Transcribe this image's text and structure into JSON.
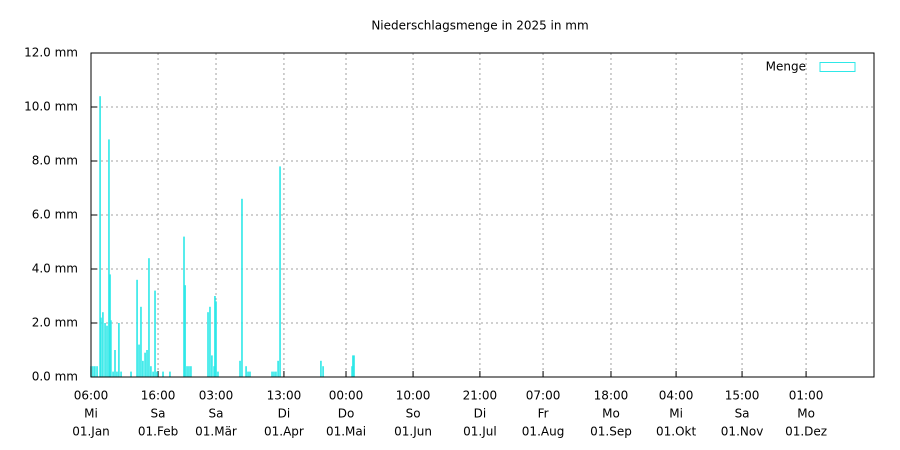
{
  "chart_data": {
    "type": "bar",
    "title": "Niederschlagsmenge in 2025 in mm",
    "series": [
      {
        "name": "Menge",
        "color": "#2ee8e8",
        "x": [
          0,
          0.9,
          1.8,
          2.8,
          4.2,
          4.6,
          5.5,
          6.5,
          7.4,
          8.3,
          8.8,
          9.2,
          10.2,
          11.1,
          12,
          12.9,
          13.9,
          18.5,
          21.3,
          22.2,
          23.1,
          24,
          25,
          25.9,
          26.8,
          27.7,
          28.7,
          29.6,
          30.5,
          33.3,
          36.5,
          43,
          43.5,
          44.4,
          45.3,
          46.2,
          54.1,
          55,
          55.9,
          56.9,
          57.3,
          57.8,
          58.7,
          68.9,
          69.8,
          71.7,
          72.6,
          73.5,
          83.7,
          84.6,
          85.5,
          86.5,
          87.4,
          106.3,
          107.3,
          120.7,
          121.1,
          121.6
        ],
        "values": [
          0.4,
          0.4,
          0.4,
          0.4,
          10.4,
          2.2,
          2.4,
          2.0,
          1.9,
          8.8,
          3.8,
          2.1,
          0.2,
          1.0,
          0.2,
          2.0,
          0.2,
          0.2,
          3.6,
          1.2,
          2.6,
          0.6,
          0.9,
          1.0,
          4.4,
          0.4,
          0.2,
          3.2,
          0.2,
          0.2,
          0.2,
          5.2,
          3.4,
          0.4,
          0.4,
          0.4,
          2.4,
          2.6,
          0.8,
          0.4,
          3.0,
          2.8,
          0.2,
          0.6,
          6.6,
          0.4,
          0.2,
          0.2,
          0.2,
          0.2,
          0.2,
          0.6,
          7.8,
          0.6,
          0.4,
          0.4,
          0.8,
          0.8
        ]
      }
    ],
    "xlim": [
      0,
      362
    ],
    "xticks": [
      {
        "value": 0,
        "time": "06:00",
        "day": "Mi",
        "date": "01.Jan"
      },
      {
        "value": 31,
        "time": "16:00",
        "day": "Sa",
        "date": "01.Feb"
      },
      {
        "value": 57.8,
        "time": "03:00",
        "day": "Sa",
        "date": "01.Mär"
      },
      {
        "value": 89.2,
        "time": "13:00",
        "day": "Di",
        "date": "01.Apr"
      },
      {
        "value": 117.9,
        "time": "00:00",
        "day": "Do",
        "date": "01.Mai"
      },
      {
        "value": 148.9,
        "time": "10:00",
        "day": "So",
        "date": "01.Jun"
      },
      {
        "value": 179.8,
        "time": "21:00",
        "day": "Di",
        "date": "01.Jul"
      },
      {
        "value": 209,
        "time": "07:00",
        "day": "Fr",
        "date": "01.Aug"
      },
      {
        "value": 240.4,
        "time": "18:00",
        "day": "Mo",
        "date": "01.Sep"
      },
      {
        "value": 270.5,
        "time": "04:00",
        "day": "Mi",
        "date": "01.Okt"
      },
      {
        "value": 301,
        "time": "15:00",
        "day": "Sa",
        "date": "01.Nov"
      },
      {
        "value": 330.6,
        "time": "01:00",
        "day": "Mo",
        "date": "01.Dez"
      }
    ],
    "ylim": [
      0,
      12
    ],
    "yticks": [
      {
        "value": 0,
        "label": "0.0 mm"
      },
      {
        "value": 2,
        "label": "2.0 mm"
      },
      {
        "value": 4,
        "label": "4.0 mm"
      },
      {
        "value": 6,
        "label": "6.0 mm"
      },
      {
        "value": 8,
        "label": "8.0 mm"
      },
      {
        "value": 10,
        "label": "10.0 mm"
      },
      {
        "value": 12,
        "label": "12.0 mm"
      }
    ],
    "grid": true,
    "legend": "top-right"
  }
}
